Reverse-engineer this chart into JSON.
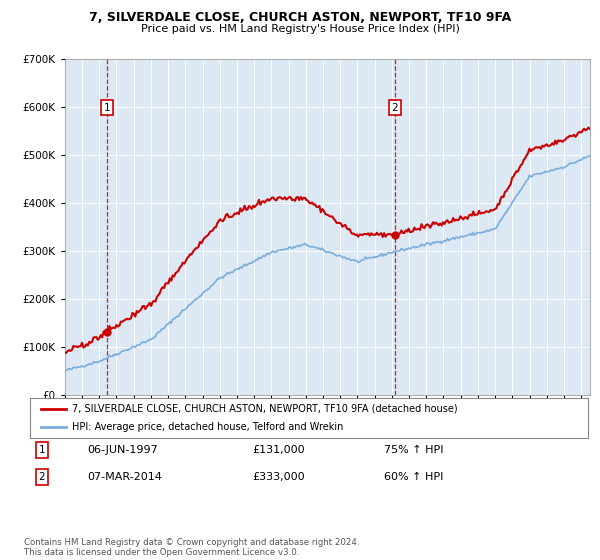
{
  "title1": "7, SILVERDALE CLOSE, CHURCH ASTON, NEWPORT, TF10 9FA",
  "title2": "Price paid vs. HM Land Registry's House Price Index (HPI)",
  "legend_line1": "7, SILVERDALE CLOSE, CHURCH ASTON, NEWPORT, TF10 9FA (detached house)",
  "legend_line2": "HPI: Average price, detached house, Telford and Wrekin",
  "sale1_date": "06-JUN-1997",
  "sale1_price": 131000,
  "sale1_label": "75% ↑ HPI",
  "sale2_date": "07-MAR-2014",
  "sale2_price": 333000,
  "sale2_label": "60% ↑ HPI",
  "footer": "Contains HM Land Registry data © Crown copyright and database right 2024.\nThis data is licensed under the Open Government Licence v3.0.",
  "plot_bg": "#dce9f5",
  "red_color": "#cc0000",
  "blue_color": "#7aaddb",
  "ylim_min": 0,
  "ylim_max": 700000,
  "sale1_x_year": 1997.43,
  "sale2_x_year": 2014.18,
  "xmin": 1995,
  "xmax": 2025.5
}
